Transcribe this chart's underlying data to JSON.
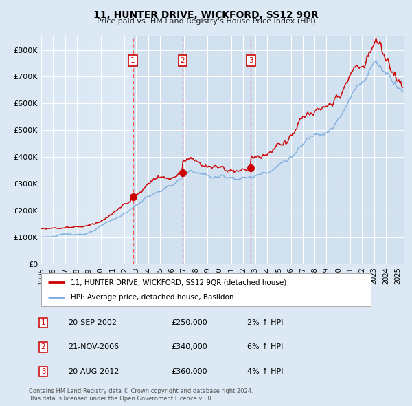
{
  "title": "11, HUNTER DRIVE, WICKFORD, SS12 9QR",
  "subtitle": "Price paid vs. HM Land Registry's House Price Index (HPI)",
  "legend_line1": "11, HUNTER DRIVE, WICKFORD, SS12 9QR (detached house)",
  "legend_line2": "HPI: Average price, detached house, Basildon",
  "footer1": "Contains HM Land Registry data © Crown copyright and database right 2024.",
  "footer2": "This data is licensed under the Open Government Licence v3.0.",
  "transactions": [
    {
      "num": 1,
      "date": "20-SEP-2002",
      "price": 250000,
      "pct": "2%",
      "direction": "↑"
    },
    {
      "num": 2,
      "date": "21-NOV-2006",
      "price": 340000,
      "pct": "6%",
      "direction": "↑"
    },
    {
      "num": 3,
      "date": "20-AUG-2012",
      "price": 360000,
      "pct": "4%",
      "direction": "↑"
    }
  ],
  "vline_color": "#ff5555",
  "dot_color": "#cc0000",
  "red_line_color": "#cc0000",
  "blue_line_color": "#7aaadd",
  "bg_color": "#dce9f5",
  "grid_color": "#ffffff",
  "ylim": [
    0,
    850000
  ],
  "yticks": [
    0,
    100000,
    200000,
    300000,
    400000,
    500000,
    600000,
    700000,
    800000
  ],
  "xlim_start": 1995.0,
  "xlim_end": 2025.5
}
